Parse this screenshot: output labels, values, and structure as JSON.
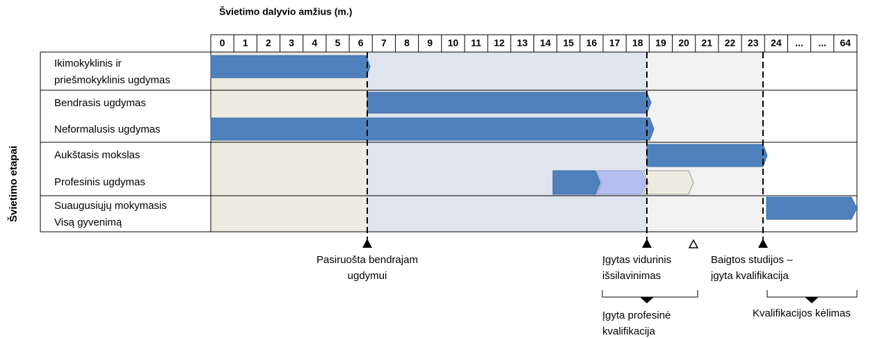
{
  "header": {
    "title": "Švietimo dalyvio amžius (m.)",
    "side_label": "Švietimo etapai"
  },
  "ages": [
    "0",
    "1",
    "2",
    "3",
    "4",
    "5",
    "6",
    "7",
    "8",
    "9",
    "10",
    "11",
    "12",
    "13",
    "14",
    "15",
    "16",
    "17",
    "18",
    "19",
    "20",
    "21",
    "22",
    "23",
    "24",
    "...",
    "...",
    "64"
  ],
  "stages": [
    {
      "lines": [
        "Ikimokyklinis ir",
        "priešmokyklinis ugdymas"
      ]
    },
    {
      "lines": [
        "Bendrasis ugdymas"
      ]
    },
    {
      "lines": [
        "Neformalusis ugdymas"
      ]
    },
    {
      "lines": [
        "Aukštasis mokslas"
      ]
    },
    {
      "lines": [
        "Profesinis ugdymas"
      ]
    },
    {
      "lines": [
        "Suaugusiųjų mokymasis",
        "Visą gyvenimą"
      ]
    }
  ],
  "annotations": [
    {
      "lines": [
        "Pasiruošta bendrajam",
        "ugdymui"
      ]
    },
    {
      "lines": [
        "Įgytas vidurinis",
        "išsilavinimas"
      ]
    },
    {
      "lines": [
        "Baigtos studijos –",
        "įgyta kvalifikacija"
      ]
    },
    {
      "lines": [
        "Įgyta profesinė",
        "kvalifikacija"
      ]
    },
    {
      "lines": [
        "Kvalifikacijos kėlimas"
      ]
    }
  ]
}
